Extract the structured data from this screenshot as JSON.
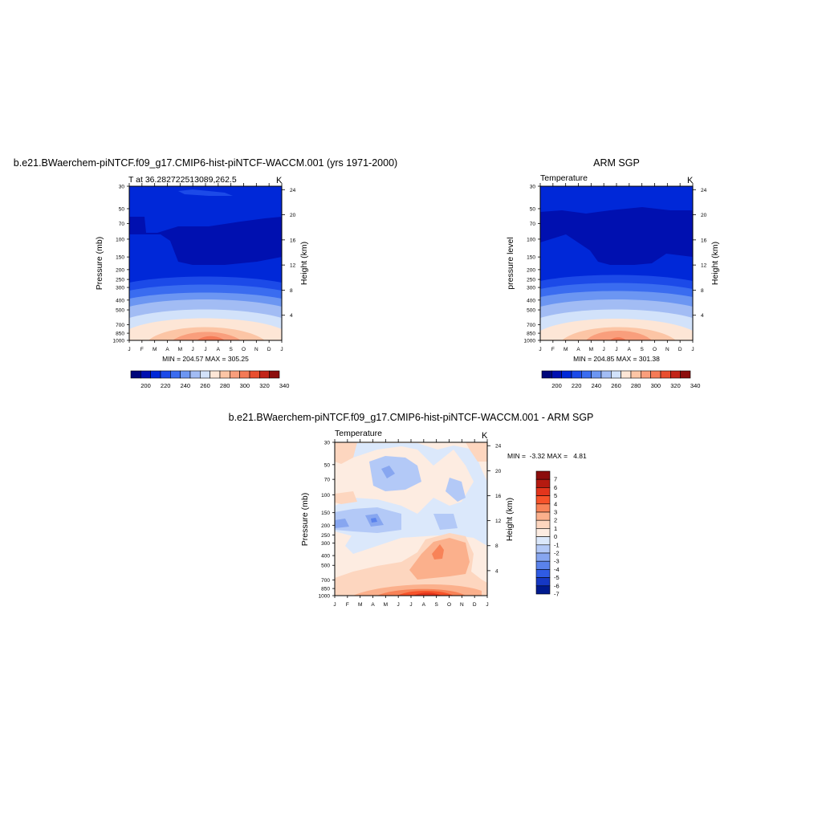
{
  "chart_data": [
    {
      "type": "heatmap",
      "title": "b.e21.BWaerchem-piNTCF.f09_g17.CMIP6-hist-piNTCF-WACCM.001 (yrs 1971-2000)",
      "subtitle_left": "T at 36.282722513089,262.5",
      "subtitle_right": "K",
      "ylabel": "Pressure (mb)",
      "y2label": "Height (km)",
      "x_ticks": [
        "J",
        "F",
        "M",
        "A",
        "M",
        "J",
        "J",
        "A",
        "S",
        "O",
        "N",
        "D",
        "J"
      ],
      "y_ticks": [
        30,
        50,
        70,
        100,
        150,
        200,
        250,
        300,
        400,
        500,
        700,
        850,
        1000
      ],
      "y2_ticks": [
        24,
        20,
        16,
        12,
        8,
        4
      ],
      "stats": "MIN = 204.57 MAX = 305.25",
      "colorbar_labels": [
        "200",
        "220",
        "240",
        "260",
        "280",
        "300",
        "320",
        "340"
      ]
    },
    {
      "type": "heatmap",
      "title": "ARM SGP",
      "subtitle_left": "Temperature",
      "subtitle_right": "K",
      "ylabel": "pressure level",
      "y2label": "Height (km)",
      "x_ticks": [
        "J",
        "F",
        "M",
        "A",
        "M",
        "J",
        "J",
        "A",
        "S",
        "O",
        "N",
        "D",
        "J"
      ],
      "y_ticks": [
        30,
        50,
        70,
        100,
        150,
        200,
        250,
        300,
        400,
        500,
        700,
        850,
        1000
      ],
      "y2_ticks": [
        24,
        20,
        16,
        12,
        8,
        4
      ],
      "stats": "MIN = 204.85 MAX = 301.38",
      "colorbar_labels": [
        "200",
        "220",
        "240",
        "260",
        "280",
        "300",
        "320",
        "340"
      ]
    },
    {
      "type": "heatmap",
      "title": "b.e21.BWaerchem-piNTCF.f09_g17.CMIP6-hist-piNTCF-WACCM.001 - ARM SGP",
      "subtitle_left": "Temperature",
      "subtitle_right": "K",
      "ylabel": "Pressure (mb)",
      "y2label": "Height (km)",
      "x_ticks": [
        "J",
        "F",
        "M",
        "A",
        "M",
        "J",
        "J",
        "A",
        "S",
        "O",
        "N",
        "D",
        "J"
      ],
      "y_ticks": [
        30,
        50,
        70,
        100,
        150,
        200,
        250,
        300,
        400,
        500,
        700,
        850,
        1000
      ],
      "y2_ticks": [
        24,
        20,
        16,
        12,
        8,
        4
      ],
      "stats": "MIN =  -3.32 MAX =   4.81",
      "colorbar_labels": [
        "7",
        "6",
        "5",
        "4",
        "3",
        "2",
        "1",
        "0",
        "-1",
        "-2",
        "-3",
        "-4",
        "-5",
        "-6",
        "-7"
      ]
    }
  ],
  "colors": {
    "temp_scale": [
      "#00077a",
      "#0010b0",
      "#0028d8",
      "#1c4ae8",
      "#3a6cf0",
      "#6c96f2",
      "#a2bcf4",
      "#d2e2fa",
      "#fde6d6",
      "#fcc5a5",
      "#f99e7c",
      "#f47a56",
      "#e84e2e",
      "#c22418",
      "#8c0d0c"
    ],
    "diff_scale": [
      "#8c0d0c",
      "#b51a10",
      "#e3351c",
      "#f7532a",
      "#f88358",
      "#fbb08c",
      "#fdd6bf",
      "#fdece1",
      "#dbe8fb",
      "#b3c9f7",
      "#87a6f0",
      "#5a82ec",
      "#2f5be4",
      "#1638c4",
      "#001a8e"
    ]
  }
}
